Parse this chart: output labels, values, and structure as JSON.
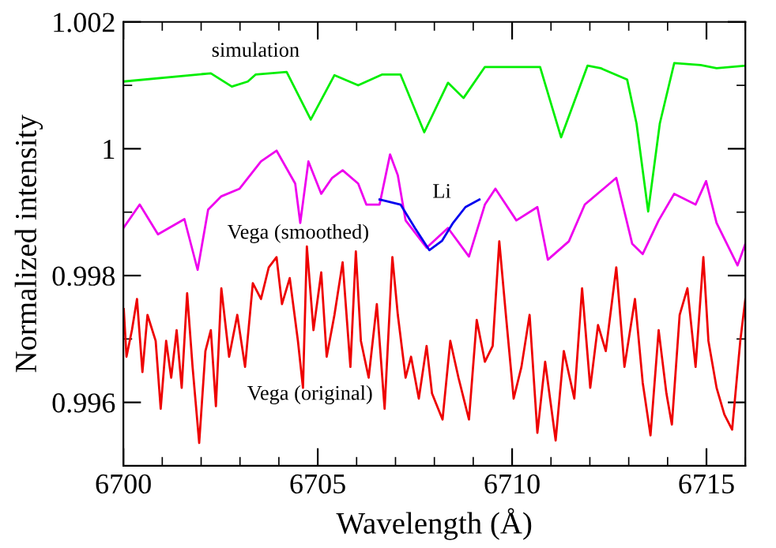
{
  "chart_data": {
    "type": "line",
    "xlabel": "Wavelength (Å)",
    "ylabel": "Normalized intensity",
    "xlim": [
      6700,
      6716
    ],
    "ylim": [
      0.995,
      1.002
    ],
    "xticks": [
      6700,
      {
        "value": 6701,
        "label": null
      },
      {
        "value": 6702,
        "label": null
      },
      {
        "value": 6703,
        "label": null
      },
      {
        "value": 6704,
        "label": null
      },
      6705,
      {
        "value": 6706,
        "label": null
      },
      {
        "value": 6707,
        "label": null
      },
      {
        "value": 6708,
        "label": null
      },
      {
        "value": 6709,
        "label": null
      },
      6710,
      {
        "value": 6711,
        "label": null
      },
      {
        "value": 6712,
        "label": null
      },
      {
        "value": 6713,
        "label": null
      },
      {
        "value": 6714,
        "label": null
      },
      6715,
      {
        "value": 6716,
        "label": null
      }
    ],
    "yticks": [
      {
        "value": 0.995,
        "label": null
      },
      {
        "value": 0.996,
        "label": "0.996"
      },
      {
        "value": 0.997,
        "label": null
      },
      {
        "value": 0.998,
        "label": "0.998"
      },
      {
        "value": 0.999,
        "label": null
      },
      1,
      {
        "value": 1.001,
        "label": null
      },
      {
        "value": 1.002,
        "label": "1.002"
      }
    ],
    "grid": false,
    "legend": false,
    "marker": "none",
    "line_style": "solid",
    "series": [
      {
        "name": "simulation",
        "color": "#00ee00",
        "x": [
          6700.0,
          6702.25,
          6702.79,
          6703.2,
          6703.4,
          6704.2,
          6704.82,
          6705.43,
          6706.04,
          6706.65,
          6707.13,
          6707.74,
          6708.35,
          6708.75,
          6709.3,
          6710.72,
          6711.26,
          6711.94,
          6712.28,
          6712.96,
          6713.2,
          6713.5,
          6713.8,
          6714.17,
          6714.85,
          6715.26,
          6716.0
        ],
        "values": [
          1.00106,
          1.00119,
          1.00098,
          1.00106,
          1.00117,
          1.00121,
          1.00046,
          1.00116,
          1.001,
          1.00117,
          1.00117,
          1.00026,
          1.00104,
          1.0008,
          1.00129,
          1.00129,
          1.00018,
          1.00131,
          1.00127,
          1.00109,
          1.0004,
          0.99901,
          1.0004,
          1.00135,
          1.00132,
          1.00127,
          1.00131
        ]
      },
      {
        "name": "Vega (smoothed)",
        "color": "#ee00ee",
        "x": [
          6700.0,
          6700.42,
          6700.89,
          6701.57,
          6701.91,
          6702.18,
          6702.52,
          6702.99,
          6703.54,
          6703.94,
          6704.42,
          6704.55,
          6704.76,
          6705.09,
          6705.37,
          6705.64,
          6706.04,
          6706.25,
          6706.59,
          6706.86,
          6707.06,
          6707.26,
          6707.8,
          6708.35,
          6708.89,
          6709.3,
          6709.57,
          6710.11,
          6710.65,
          6710.92,
          6711.46,
          6711.87,
          6712.68,
          6713.09,
          6713.36,
          6713.77,
          6714.17,
          6714.72,
          6714.99,
          6715.26,
          6715.8,
          6716.0
        ],
        "values": [
          0.99875,
          0.99912,
          0.99865,
          0.99889,
          0.99809,
          0.99904,
          0.99925,
          0.99937,
          0.9998,
          0.99997,
          0.99945,
          0.99883,
          0.9998,
          0.99929,
          0.99954,
          0.99966,
          0.99945,
          0.99912,
          0.99912,
          0.99991,
          0.99958,
          0.99887,
          0.99844,
          0.99875,
          0.9983,
          0.99912,
          0.99937,
          0.99887,
          0.99908,
          0.99825,
          0.99854,
          0.99912,
          0.99954,
          0.9985,
          0.99834,
          0.99887,
          0.99929,
          0.99912,
          0.99949,
          0.99883,
          0.99816,
          0.9985
        ]
      },
      {
        "name": "Vega (original)",
        "color": "#ee0000",
        "x": [
          6700.01,
          6700.08,
          6700.22,
          6700.35,
          6700.49,
          6700.62,
          6700.83,
          6700.96,
          6701.1,
          6701.23,
          6701.37,
          6701.5,
          6701.64,
          6701.78,
          6701.95,
          6702.11,
          6702.25,
          6702.38,
          6702.52,
          6702.72,
          6702.93,
          6703.13,
          6703.33,
          6703.54,
          6703.74,
          6703.94,
          6704.08,
          6704.28,
          6704.49,
          6704.62,
          6704.72,
          6704.89,
          6705.09,
          6705.23,
          6705.43,
          6705.64,
          6705.84,
          6705.98,
          6706.11,
          6706.31,
          6706.52,
          6706.72,
          6706.92,
          6707.06,
          6707.26,
          6707.4,
          6707.6,
          6707.8,
          6707.94,
          6708.21,
          6708.41,
          6708.62,
          6708.89,
          6709.09,
          6709.3,
          6709.5,
          6709.67,
          6709.84,
          6710.04,
          6710.24,
          6710.45,
          6710.65,
          6710.85,
          6711.12,
          6711.33,
          6711.6,
          6711.8,
          6712.01,
          6712.21,
          6712.41,
          6712.68,
          6712.89,
          6713.16,
          6713.36,
          6713.56,
          6713.77,
          6713.97,
          6714.11,
          6714.31,
          6714.51,
          6714.72,
          6714.92,
          6715.05,
          6715.26,
          6715.46,
          6715.66,
          6715.87,
          6716.0
        ],
        "values": [
          0.99747,
          0.99672,
          0.99714,
          0.99763,
          0.99648,
          0.99738,
          0.99697,
          0.9959,
          0.99697,
          0.99639,
          0.99714,
          0.99623,
          0.99772,
          0.99656,
          0.99536,
          0.99681,
          0.99714,
          0.99594,
          0.9978,
          0.99672,
          0.99738,
          0.99656,
          0.99788,
          0.99763,
          0.99813,
          0.99829,
          0.99755,
          0.99796,
          0.99697,
          0.99623,
          0.99846,
          0.99714,
          0.99805,
          0.99672,
          0.99738,
          0.99821,
          0.99656,
          0.99838,
          0.99697,
          0.99639,
          0.99755,
          0.9959,
          0.99829,
          0.99738,
          0.99639,
          0.99672,
          0.99606,
          0.99689,
          0.99614,
          0.99573,
          0.99697,
          0.99639,
          0.99573,
          0.9973,
          0.99664,
          0.99689,
          0.99854,
          0.99738,
          0.99606,
          0.99656,
          0.99738,
          0.99552,
          0.99664,
          0.9954,
          0.99681,
          0.99606,
          0.9978,
          0.99623,
          0.99722,
          0.99681,
          0.99813,
          0.99656,
          0.99763,
          0.99631,
          0.99548,
          0.99714,
          0.99614,
          0.99565,
          0.99738,
          0.9978,
          0.99656,
          0.99829,
          0.99697,
          0.99623,
          0.99581,
          0.99557,
          0.99697,
          0.99763
        ]
      },
      {
        "name": "Li",
        "color": "#0000ee",
        "x": [
          6706.59,
          6707.13,
          6707.5,
          6707.87,
          6708.2,
          6708.48,
          6708.8,
          6709.16
        ],
        "values": [
          0.9992,
          0.99912,
          0.99875,
          0.9984,
          0.99855,
          0.99883,
          0.99908,
          0.9992
        ]
      }
    ]
  }
}
